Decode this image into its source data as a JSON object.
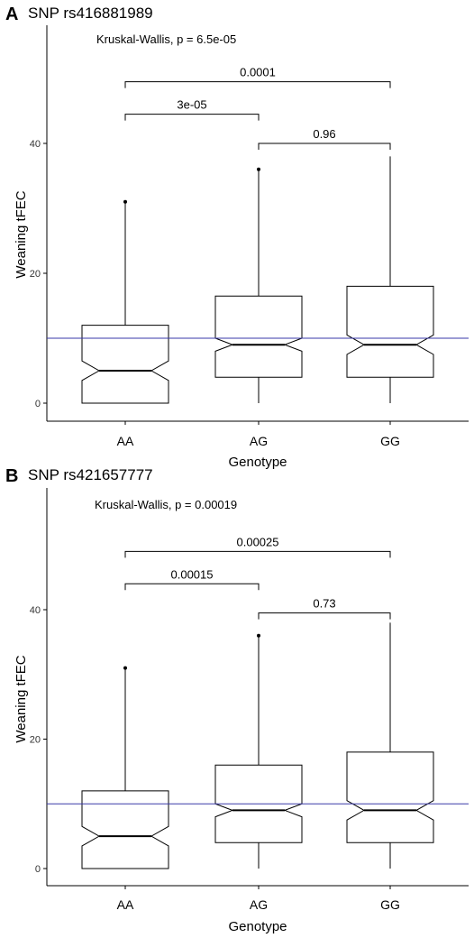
{
  "colors": {
    "reference_line": "#3a3aa8",
    "box_edge": "#000000"
  },
  "chart_data": [
    {
      "type": "box",
      "panel_label": "A",
      "title": "SNP rs416881989",
      "annotation": "Kruskal-Wallis, p = 6.5e-05",
      "xlabel": "Genotype",
      "ylabel": "Weaning tFEC",
      "ylim": [
        -1.5,
        56
      ],
      "yticks": [
        0,
        20,
        40
      ],
      "categories": [
        "AA",
        "AG",
        "GG"
      ],
      "boxes": [
        {
          "category": "AA",
          "min": 0,
          "q1": 0,
          "median": 5,
          "q3": 12,
          "max": 31,
          "notch_low": 3.5,
          "notch_high": 6.5,
          "outliers": [
            31
          ]
        },
        {
          "category": "AG",
          "min": 0,
          "q1": 4,
          "median": 9,
          "q3": 16.5,
          "max": 36,
          "notch_low": 8,
          "notch_high": 10,
          "outliers": [
            36
          ]
        },
        {
          "category": "GG",
          "min": 0,
          "q1": 4,
          "median": 9,
          "q3": 18,
          "max": 38,
          "notch_low": 7.5,
          "notch_high": 10.5,
          "outliers": []
        }
      ],
      "reference_line": 10,
      "comparisons": [
        {
          "from": "AA",
          "to": "AG",
          "label": "3e-05",
          "y": 44.5
        },
        {
          "from": "AG",
          "to": "GG",
          "label": "0.96",
          "y": 40
        },
        {
          "from": "AA",
          "to": "GG",
          "label": "0.0001",
          "y": 49.5
        }
      ]
    },
    {
      "type": "box",
      "panel_label": "B",
      "title": "SNP rs421657777",
      "annotation": "Kruskal-Wallis, p = 0.00019",
      "xlabel": "Genotype",
      "ylabel": "Weaning tFEC",
      "ylim": [
        -1.5,
        56
      ],
      "yticks": [
        0,
        20,
        40
      ],
      "categories": [
        "AA",
        "AG",
        "GG"
      ],
      "boxes": [
        {
          "category": "AA",
          "min": 0,
          "q1": 0,
          "median": 5,
          "q3": 12,
          "max": 31,
          "notch_low": 3.5,
          "notch_high": 6.5,
          "outliers": [
            31
          ]
        },
        {
          "category": "AG",
          "min": 0,
          "q1": 4,
          "median": 9,
          "q3": 16,
          "max": 36,
          "notch_low": 8,
          "notch_high": 10,
          "outliers": [
            36
          ]
        },
        {
          "category": "GG",
          "min": 0,
          "q1": 4,
          "median": 9,
          "q3": 18,
          "max": 38,
          "notch_low": 7.5,
          "notch_high": 10.5,
          "outliers": []
        }
      ],
      "reference_line": 10,
      "comparisons": [
        {
          "from": "AA",
          "to": "AG",
          "label": "0.00015",
          "y": 44
        },
        {
          "from": "AG",
          "to": "GG",
          "label": "0.73",
          "y": 39.5
        },
        {
          "from": "AA",
          "to": "GG",
          "label": "0.00025",
          "y": 49
        }
      ]
    }
  ]
}
